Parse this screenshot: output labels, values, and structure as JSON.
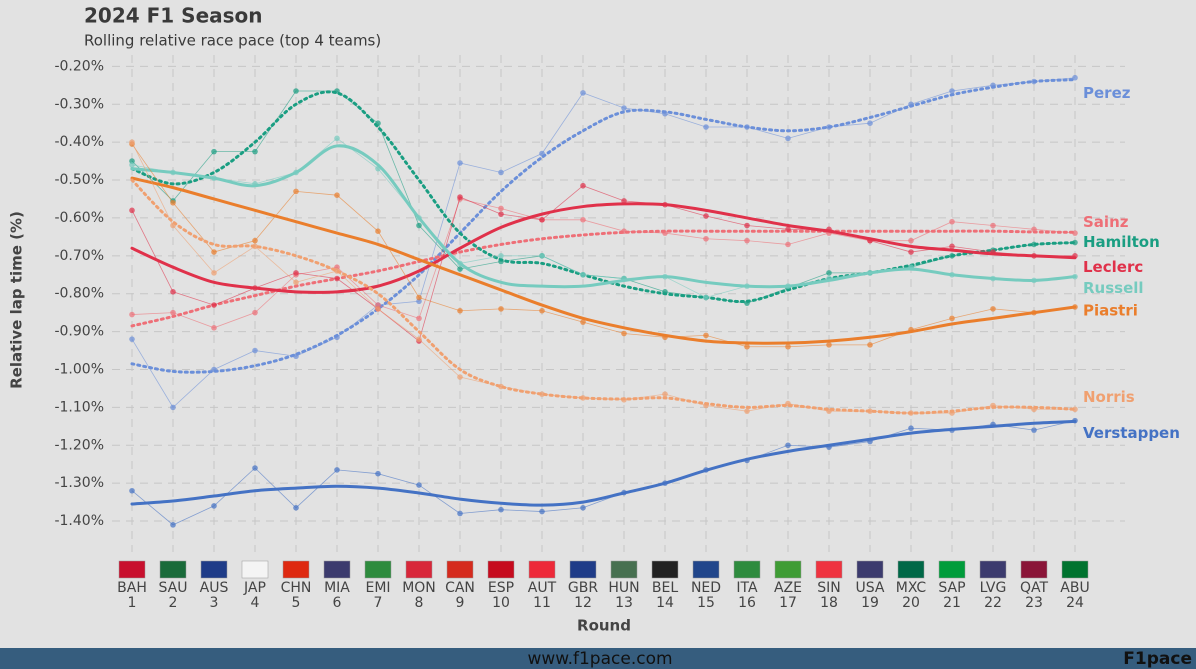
{
  "chart_data": {
    "type": "line",
    "title": "2024 F1 Season",
    "subtitle": "Rolling relative race pace (top 4 teams)",
    "y_label": "Relative lap time (%)",
    "x_label": "Round",
    "footer_url": "www.f1pace.com",
    "footer_brand": "F1pace",
    "categories": [
      "BAH",
      "SAU",
      "AUS",
      "JAP",
      "CHN",
      "MIA",
      "EMI",
      "MON",
      "CAN",
      "ESP",
      "AUT",
      "GBR",
      "HUN",
      "BEL",
      "NED",
      "ITA",
      "AZE",
      "SIN",
      "USA",
      "MXC",
      "SAP",
      "LVG",
      "QAT",
      "ABU"
    ],
    "round_numbers": [
      1,
      2,
      3,
      4,
      5,
      6,
      7,
      8,
      9,
      10,
      11,
      12,
      13,
      14,
      15,
      16,
      17,
      18,
      19,
      20,
      21,
      22,
      23,
      24
    ],
    "ylim": [
      -1.45,
      -0.17
    ],
    "yticks": [
      {
        "value": -0.2,
        "label": "-0.20%"
      },
      {
        "value": -0.3,
        "label": "-0.30%"
      },
      {
        "value": -0.4,
        "label": "-0.40%"
      },
      {
        "value": -0.5,
        "label": "-0.50%"
      },
      {
        "value": -0.6,
        "label": "-0.60%"
      },
      {
        "value": -0.7,
        "label": "-0.70%"
      },
      {
        "value": -0.8,
        "label": "-0.80%"
      },
      {
        "value": -0.9,
        "label": "-0.90%"
      },
      {
        "value": -1.0,
        "label": "-1.00%"
      },
      {
        "value": -1.1,
        "label": "-1.10%"
      },
      {
        "value": -1.2,
        "label": "-1.20%"
      },
      {
        "value": -1.3,
        "label": "-1.30%"
      },
      {
        "value": -1.4,
        "label": "-1.40%"
      }
    ],
    "grid": true,
    "series": [
      {
        "name": "Perez",
        "color": "#6b8fd9",
        "dashed": true,
        "values": [
          -0.985,
          -1.005,
          -1.005,
          -0.99,
          -0.96,
          -0.91,
          -0.84,
          -0.75,
          -0.64,
          -0.53,
          -0.44,
          -0.37,
          -0.32,
          -0.32,
          -0.34,
          -0.36,
          -0.37,
          -0.36,
          -0.335,
          -0.305,
          -0.275,
          -0.255,
          -0.24,
          -0.235
        ],
        "points": [
          -0.92,
          -1.1,
          -1.0,
          -0.95,
          -0.965,
          -0.915,
          -0.83,
          -0.82,
          -0.455,
          -0.48,
          -0.43,
          -0.27,
          -0.31,
          -0.325,
          -0.36,
          -0.36,
          -0.39,
          -0.36,
          -0.35,
          -0.3,
          -0.265,
          -0.25,
          -0.24,
          -0.23
        ]
      },
      {
        "name": "Sainz",
        "color": "#ee6f77",
        "dashed": true,
        "values": [
          -0.885,
          -0.86,
          -0.83,
          -0.805,
          -0.78,
          -0.76,
          -0.74,
          -0.715,
          -0.69,
          -0.67,
          -0.655,
          -0.645,
          -0.638,
          -0.635,
          -0.635,
          -0.635,
          -0.635,
          -0.635,
          -0.635,
          -0.635,
          -0.635,
          -0.635,
          -0.637,
          -0.638
        ],
        "points": [
          -0.855,
          -0.85,
          -0.89,
          -0.85,
          -0.75,
          -0.73,
          -0.83,
          -0.865,
          -0.55,
          -0.575,
          -0.605,
          -0.605,
          -0.635,
          -0.64,
          -0.655,
          -0.66,
          -0.67,
          -0.64,
          -0.66,
          -0.66,
          -0.61,
          -0.62,
          -0.63,
          -0.64
        ]
      },
      {
        "name": "Hamilton",
        "color": "#1a9e82",
        "dashed": true,
        "values": [
          -0.47,
          -0.51,
          -0.48,
          -0.4,
          -0.3,
          -0.27,
          -0.36,
          -0.5,
          -0.64,
          -0.71,
          -0.72,
          -0.75,
          -0.78,
          -0.8,
          -0.81,
          -0.82,
          -0.79,
          -0.76,
          -0.745,
          -0.725,
          -0.7,
          -0.685,
          -0.67,
          -0.665
        ],
        "points": [
          -0.45,
          -0.555,
          -0.425,
          -0.425,
          -0.265,
          -0.265,
          -0.35,
          -0.62,
          -0.735,
          -0.715,
          -0.7,
          -0.75,
          -0.76,
          -0.795,
          -0.81,
          -0.825,
          -0.785,
          -0.745,
          -0.745,
          -0.73,
          -0.7,
          -0.685,
          -0.67,
          -0.665
        ]
      },
      {
        "name": "Leclerc",
        "color": "#e0314a",
        "dashed": false,
        "values": [
          -0.68,
          -0.73,
          -0.77,
          -0.785,
          -0.795,
          -0.795,
          -0.78,
          -0.74,
          -0.68,
          -0.625,
          -0.59,
          -0.57,
          -0.563,
          -0.565,
          -0.58,
          -0.6,
          -0.62,
          -0.635,
          -0.655,
          -0.675,
          -0.685,
          -0.695,
          -0.7,
          -0.705
        ],
        "points": [
          -0.58,
          -0.795,
          -0.83,
          -0.785,
          -0.745,
          -0.76,
          -0.84,
          -0.925,
          -0.545,
          -0.59,
          -0.605,
          -0.515,
          -0.555,
          -0.565,
          -0.595,
          -0.62,
          -0.63,
          -0.63,
          -0.66,
          -0.69,
          -0.675,
          -0.69,
          -0.7,
          -0.7
        ]
      },
      {
        "name": "Russell",
        "color": "#76cbbf",
        "dashed": false,
        "values": [
          -0.47,
          -0.48,
          -0.495,
          -0.515,
          -0.48,
          -0.41,
          -0.46,
          -0.6,
          -0.72,
          -0.77,
          -0.78,
          -0.78,
          -0.765,
          -0.755,
          -0.77,
          -0.78,
          -0.78,
          -0.765,
          -0.745,
          -0.735,
          -0.75,
          -0.76,
          -0.765,
          -0.755
        ],
        "points": [
          -0.46,
          -0.48,
          -0.495,
          -0.51,
          -0.48,
          -0.39,
          -0.47,
          -0.6,
          -0.72,
          -0.7,
          -0.7,
          -0.75,
          -0.76,
          -0.755,
          -0.81,
          -0.78,
          -0.78,
          -0.76,
          -0.745,
          -0.73,
          -0.75,
          -0.76,
          -0.765,
          -0.755
        ]
      },
      {
        "name": "Piastri",
        "color": "#ea7e2c",
        "dashed": false,
        "values": [
          -0.495,
          -0.52,
          -0.55,
          -0.58,
          -0.61,
          -0.64,
          -0.67,
          -0.71,
          -0.75,
          -0.79,
          -0.83,
          -0.865,
          -0.89,
          -0.91,
          -0.925,
          -0.93,
          -0.93,
          -0.925,
          -0.915,
          -0.9,
          -0.88,
          -0.865,
          -0.85,
          -0.835
        ],
        "points": [
          -0.405,
          -0.56,
          -0.69,
          -0.66,
          -0.53,
          -0.54,
          -0.635,
          -0.81,
          -0.845,
          -0.84,
          -0.845,
          -0.875,
          -0.905,
          -0.915,
          -0.91,
          -0.94,
          -0.94,
          -0.935,
          -0.935,
          -0.895,
          -0.865,
          -0.84,
          -0.85,
          -0.835
        ]
      },
      {
        "name": "Norris",
        "color": "#f0a070",
        "dashed": true,
        "values": [
          -0.5,
          -0.61,
          -0.67,
          -0.675,
          -0.7,
          -0.74,
          -0.8,
          -0.9,
          -1.0,
          -1.045,
          -1.065,
          -1.075,
          -1.078,
          -1.075,
          -1.09,
          -1.1,
          -1.095,
          -1.105,
          -1.11,
          -1.115,
          -1.11,
          -1.1,
          -1.1,
          -1.105
        ],
        "points": [
          -0.4,
          -0.62,
          -0.745,
          -0.675,
          -0.77,
          -0.74,
          -0.84,
          -0.92,
          -1.02,
          -1.045,
          -1.065,
          -1.075,
          -1.08,
          -1.065,
          -1.095,
          -1.11,
          -1.09,
          -1.11,
          -1.11,
          -1.115,
          -1.115,
          -1.095,
          -1.105,
          -1.105
        ]
      },
      {
        "name": "Verstappen",
        "color": "#4472c4",
        "dashed": false,
        "values": [
          -1.355,
          -1.347,
          -1.334,
          -1.32,
          -1.313,
          -1.308,
          -1.313,
          -1.326,
          -1.342,
          -1.353,
          -1.358,
          -1.35,
          -1.326,
          -1.3,
          -1.266,
          -1.237,
          -1.216,
          -1.2,
          -1.184,
          -1.168,
          -1.158,
          -1.15,
          -1.142,
          -1.137
        ],
        "points": [
          -1.32,
          -1.41,
          -1.36,
          -1.26,
          -1.365,
          -1.265,
          -1.275,
          -1.305,
          -1.38,
          -1.37,
          -1.375,
          -1.365,
          -1.325,
          -1.3,
          -1.265,
          -1.24,
          -1.2,
          -1.205,
          -1.19,
          -1.155,
          -1.16,
          -1.145,
          -1.16,
          -1.135
        ]
      }
    ]
  }
}
